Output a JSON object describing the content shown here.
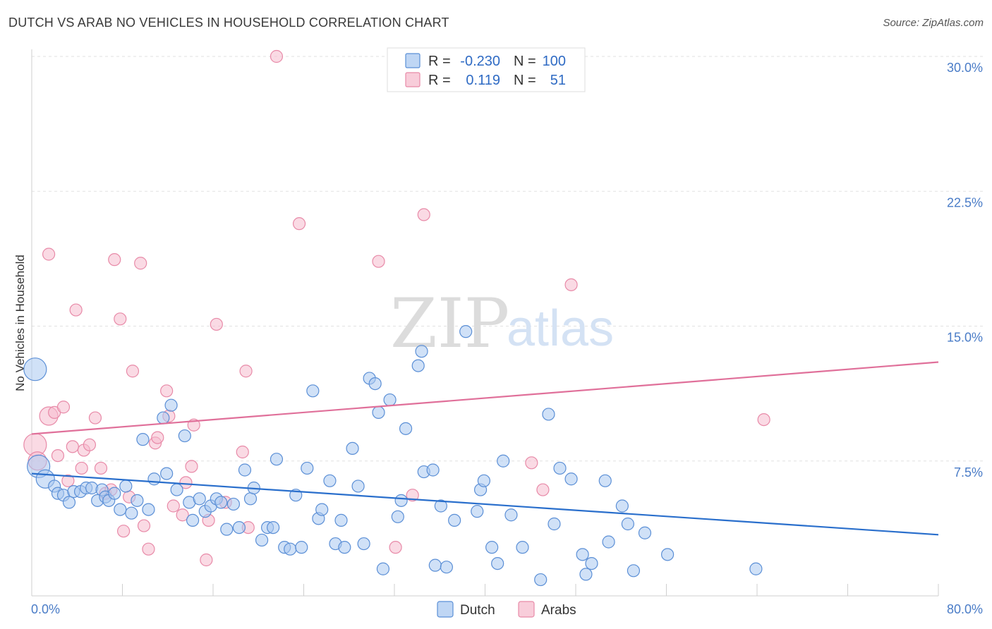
{
  "header": {
    "title": "DUTCH VS ARAB NO VEHICLES IN HOUSEHOLD CORRELATION CHART",
    "source": "Source: ZipAtlas.com"
  },
  "watermark": {
    "zip": "ZIP",
    "atlas": "atlas"
  },
  "colors": {
    "dutch_fill": "#a9c8f0",
    "dutch_stroke": "#5b8fd6",
    "dutch_line": "#2a6fcc",
    "arab_fill": "#f6bccd",
    "arab_stroke": "#e88aa8",
    "arab_line": "#e0709a"
  },
  "legend": {
    "rows": [
      {
        "r_label": "R =",
        "r_value": "-0.230",
        "n_label": "N =",
        "n_value": "100"
      },
      {
        "r_label": "R =",
        "r_value": "0.119",
        "n_label": "N =",
        "n_value": "51"
      }
    ]
  },
  "chart_data": {
    "type": "scatter",
    "title": "DUTCH VS ARAB NO VEHICLES IN HOUSEHOLD CORRELATION CHART",
    "xlabel": "",
    "ylabel": "No Vehicles in Household",
    "xlim": [
      0,
      80
    ],
    "ylim": [
      0,
      30
    ],
    "x_tick_labels": [
      "0.0%",
      "80.0%"
    ],
    "y_ticks": [
      7.5,
      15,
      22.5,
      30
    ],
    "y_tick_labels": [
      "7.5%",
      "15.0%",
      "22.5%",
      "30.0%"
    ],
    "grid": true,
    "legend_position": "top-center",
    "series": [
      {
        "name": "Dutch",
        "trend": {
          "x": [
            0,
            80
          ],
          "y": [
            6.8,
            3.4
          ]
        },
        "points": [
          [
            0.3,
            12.6,
            3
          ],
          [
            0.6,
            7.2,
            3
          ],
          [
            1.2,
            6.5,
            2
          ],
          [
            2.0,
            6.1,
            1
          ],
          [
            2.3,
            5.7,
            1
          ],
          [
            2.8,
            5.6,
            1
          ],
          [
            3.3,
            5.2,
            1
          ],
          [
            3.7,
            5.8,
            1
          ],
          [
            4.3,
            5.8,
            1
          ],
          [
            4.8,
            6.0,
            1
          ],
          [
            5.3,
            6.0,
            1
          ],
          [
            5.8,
            5.3,
            1
          ],
          [
            6.2,
            5.9,
            1
          ],
          [
            6.5,
            5.5,
            1
          ],
          [
            6.8,
            5.3,
            1
          ],
          [
            7.3,
            5.7,
            1
          ],
          [
            7.8,
            4.8,
            1
          ],
          [
            8.3,
            6.1,
            1
          ],
          [
            8.8,
            4.6,
            1
          ],
          [
            9.3,
            5.3,
            1
          ],
          [
            9.8,
            8.7,
            1
          ],
          [
            10.3,
            4.8,
            1
          ],
          [
            10.8,
            6.5,
            1
          ],
          [
            11.6,
            9.9,
            1
          ],
          [
            11.9,
            6.8,
            1
          ],
          [
            12.3,
            10.6,
            1
          ],
          [
            12.8,
            5.9,
            1
          ],
          [
            13.5,
            8.9,
            1
          ],
          [
            13.9,
            5.2,
            1
          ],
          [
            14.2,
            4.2,
            1
          ],
          [
            14.8,
            5.4,
            1
          ],
          [
            15.3,
            4.7,
            1
          ],
          [
            15.8,
            5.0,
            1
          ],
          [
            16.3,
            5.4,
            1
          ],
          [
            16.7,
            5.2,
            1
          ],
          [
            17.2,
            3.7,
            1
          ],
          [
            17.8,
            5.1,
            1
          ],
          [
            18.3,
            3.8,
            1
          ],
          [
            18.8,
            7.0,
            1
          ],
          [
            19.3,
            5.4,
            1
          ],
          [
            19.6,
            6.0,
            1
          ],
          [
            20.3,
            3.1,
            1
          ],
          [
            20.8,
            3.8,
            1
          ],
          [
            21.3,
            3.8,
            1
          ],
          [
            21.6,
            7.6,
            1
          ],
          [
            22.3,
            2.7,
            1
          ],
          [
            22.8,
            2.6,
            1
          ],
          [
            23.3,
            5.6,
            1
          ],
          [
            23.8,
            2.7,
            1
          ],
          [
            24.3,
            7.1,
            1
          ],
          [
            24.8,
            11.4,
            1
          ],
          [
            25.3,
            4.3,
            1
          ],
          [
            25.6,
            4.8,
            1
          ],
          [
            26.3,
            6.4,
            1
          ],
          [
            26.8,
            2.9,
            1
          ],
          [
            27.3,
            4.2,
            1
          ],
          [
            27.6,
            2.7,
            1
          ],
          [
            28.3,
            8.2,
            1
          ],
          [
            28.8,
            6.1,
            1
          ],
          [
            29.3,
            2.9,
            1
          ],
          [
            29.8,
            12.1,
            1
          ],
          [
            30.3,
            11.8,
            1
          ],
          [
            30.6,
            10.2,
            1
          ],
          [
            31.0,
            1.5,
            1
          ],
          [
            31.6,
            10.9,
            1
          ],
          [
            32.3,
            4.4,
            1
          ],
          [
            32.6,
            5.3,
            1
          ],
          [
            33.0,
            9.3,
            1
          ],
          [
            34.1,
            12.8,
            1
          ],
          [
            34.4,
            13.6,
            1
          ],
          [
            34.6,
            6.9,
            1
          ],
          [
            35.4,
            7.0,
            1
          ],
          [
            35.6,
            1.7,
            1
          ],
          [
            36.1,
            5.0,
            1
          ],
          [
            36.6,
            1.6,
            1
          ],
          [
            37.3,
            4.2,
            1
          ],
          [
            38.3,
            14.7,
            1
          ],
          [
            39.3,
            4.7,
            1
          ],
          [
            39.6,
            5.9,
            1
          ],
          [
            39.9,
            6.4,
            1
          ],
          [
            40.6,
            2.7,
            1
          ],
          [
            41.1,
            1.8,
            1
          ],
          [
            41.6,
            7.5,
            1
          ],
          [
            42.3,
            4.5,
            1
          ],
          [
            43.3,
            2.7,
            1
          ],
          [
            44.9,
            0.9,
            1
          ],
          [
            45.6,
            10.1,
            1
          ],
          [
            46.1,
            4.0,
            1
          ],
          [
            46.6,
            7.1,
            1
          ],
          [
            47.6,
            6.5,
            1
          ],
          [
            48.6,
            2.3,
            1
          ],
          [
            48.9,
            1.2,
            1
          ],
          [
            49.4,
            1.8,
            1
          ],
          [
            50.6,
            6.4,
            1
          ],
          [
            50.9,
            3.0,
            1
          ],
          [
            52.1,
            5.0,
            1
          ],
          [
            52.6,
            4.0,
            1
          ],
          [
            53.1,
            1.4,
            1
          ],
          [
            54.1,
            3.5,
            1
          ],
          [
            56.1,
            2.3,
            1
          ],
          [
            63.9,
            1.5,
            1
          ]
        ]
      },
      {
        "name": "Arabs",
        "trend": {
          "x": [
            0,
            80
          ],
          "y": [
            9.0,
            13.0
          ]
        },
        "points": [
          [
            0.3,
            8.4,
            3
          ],
          [
            0.5,
            7.5,
            2
          ],
          [
            1.5,
            10.0,
            2
          ],
          [
            2.0,
            10.2,
            1
          ],
          [
            2.3,
            7.8,
            1
          ],
          [
            2.8,
            10.5,
            1
          ],
          [
            3.2,
            6.4,
            1
          ],
          [
            3.6,
            8.3,
            1
          ],
          [
            3.9,
            15.9,
            1
          ],
          [
            4.4,
            7.1,
            1
          ],
          [
            4.6,
            8.1,
            1
          ],
          [
            5.1,
            8.4,
            1
          ],
          [
            5.6,
            9.9,
            1
          ],
          [
            6.1,
            7.1,
            1
          ],
          [
            6.5,
            5.7,
            1
          ],
          [
            7.0,
            5.9,
            1
          ],
          [
            7.3,
            18.7,
            1
          ],
          [
            7.8,
            15.4,
            1
          ],
          [
            8.1,
            3.6,
            1
          ],
          [
            8.6,
            5.5,
            1
          ],
          [
            8.9,
            12.5,
            1
          ],
          [
            9.6,
            18.5,
            1
          ],
          [
            9.9,
            3.9,
            1
          ],
          [
            10.3,
            2.6,
            1
          ],
          [
            10.9,
            8.5,
            1
          ],
          [
            11.1,
            8.8,
            1
          ],
          [
            11.9,
            11.4,
            1
          ],
          [
            12.1,
            10.0,
            1
          ],
          [
            12.5,
            5.0,
            1
          ],
          [
            13.3,
            4.5,
            1
          ],
          [
            13.6,
            6.3,
            1
          ],
          [
            14.1,
            7.2,
            1
          ],
          [
            14.3,
            9.5,
            1
          ],
          [
            15.4,
            2.0,
            1
          ],
          [
            15.6,
            4.2,
            1
          ],
          [
            16.3,
            15.1,
            1
          ],
          [
            17.1,
            5.2,
            1
          ],
          [
            18.6,
            8.0,
            1
          ],
          [
            18.9,
            12.5,
            1
          ],
          [
            19.1,
            3.8,
            1
          ],
          [
            21.6,
            30.0,
            1
          ],
          [
            23.6,
            20.7,
            1
          ],
          [
            30.6,
            18.6,
            1
          ],
          [
            32.1,
            2.7,
            1
          ],
          [
            33.6,
            5.6,
            1
          ],
          [
            34.6,
            21.2,
            1
          ],
          [
            44.1,
            7.4,
            1
          ],
          [
            45.1,
            5.9,
            1
          ],
          [
            47.6,
            17.3,
            1
          ],
          [
            64.6,
            9.8,
            1
          ],
          [
            1.5,
            19.0,
            1
          ]
        ]
      }
    ]
  }
}
